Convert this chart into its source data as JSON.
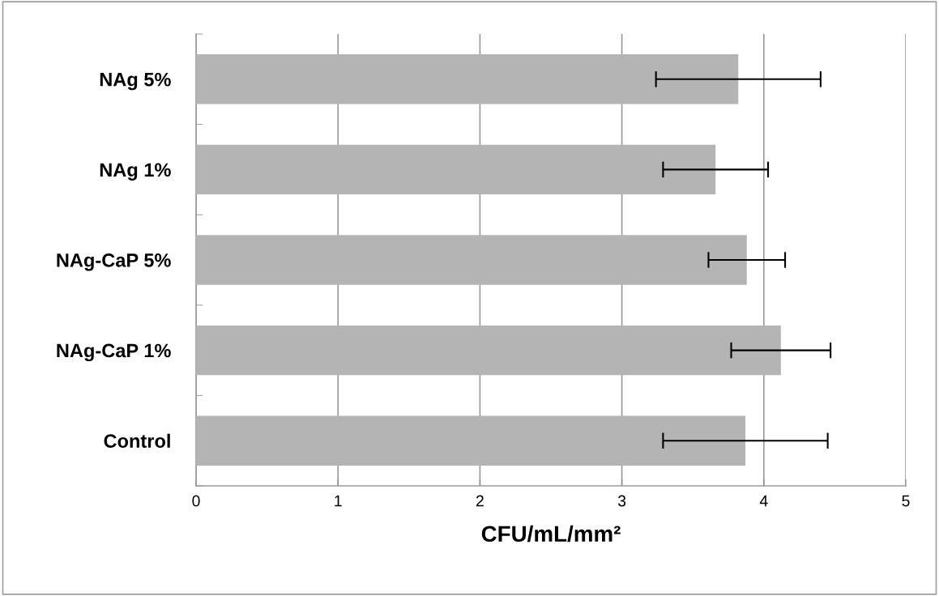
{
  "chart_data": {
    "type": "bar",
    "orientation": "horizontal",
    "xlabel": "CFU/mL/mm²",
    "categories": [
      "NAg 5%",
      "NAg 1%",
      "NAg-CaP 5%",
      "NAg-CaP 1%",
      "Control"
    ],
    "values": [
      3.82,
      3.66,
      3.88,
      4.12,
      3.87
    ],
    "errors": [
      0.58,
      0.37,
      0.27,
      0.35,
      0.58
    ],
    "color": "#b4b4b4",
    "xlim": [
      0,
      5
    ],
    "xticks": [
      0,
      1,
      2,
      3,
      4,
      5
    ],
    "grid": "x"
  }
}
